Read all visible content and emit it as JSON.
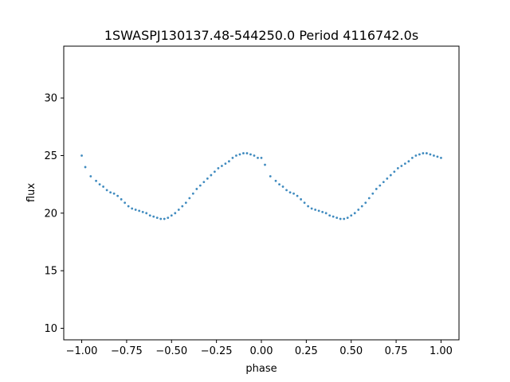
{
  "chart_data": {
    "type": "scatter",
    "title": "1SWASPJ130137.48-544250.0 Period 4116742.0s",
    "xlabel": "phase",
    "ylabel": "flux",
    "xlim": [
      -1.1,
      1.1
    ],
    "ylim": [
      9.0,
      34.5
    ],
    "xticks": [
      -1.0,
      -0.75,
      -0.5,
      -0.25,
      0.0,
      0.25,
      0.5,
      0.75,
      1.0
    ],
    "xtick_labels": [
      "−1.00",
      "−0.75",
      "−0.50",
      "−0.25",
      "0.00",
      "0.25",
      "0.50",
      "0.75",
      "1.00"
    ],
    "yticks": [
      10,
      15,
      20,
      25,
      30
    ],
    "ytick_labels": [
      "10",
      "15",
      "20",
      "25",
      "30"
    ],
    "grid": false,
    "marker_color": "#1f77b4",
    "series": [
      {
        "x": [
          -1.0,
          -0.98,
          -0.95,
          -0.92,
          -0.9,
          -0.88,
          -0.86,
          -0.84,
          -0.82,
          -0.8,
          -0.78,
          -0.76,
          -0.74,
          -0.72,
          -0.7,
          -0.68,
          -0.66,
          -0.64,
          -0.62,
          -0.6,
          -0.58,
          -0.56,
          -0.54,
          -0.52,
          -0.5,
          -0.48,
          -0.46,
          -0.44,
          -0.42,
          -0.4,
          -0.38,
          -0.36,
          -0.34,
          -0.32,
          -0.3,
          -0.28,
          -0.26,
          -0.24,
          -0.22,
          -0.2,
          -0.18,
          -0.16,
          -0.14,
          -0.12,
          -0.1,
          -0.08,
          -0.06,
          -0.04,
          -0.02,
          0.0,
          0.02,
          0.05,
          0.08,
          0.1,
          0.12,
          0.14,
          0.16,
          0.18,
          0.2,
          0.22,
          0.24,
          0.26,
          0.28,
          0.3,
          0.32,
          0.34,
          0.36,
          0.38,
          0.4,
          0.42,
          0.44,
          0.46,
          0.48,
          0.5,
          0.52,
          0.54,
          0.56,
          0.58,
          0.6,
          0.62,
          0.64,
          0.66,
          0.68,
          0.7,
          0.72,
          0.74,
          0.76,
          0.78,
          0.8,
          0.82,
          0.84,
          0.86,
          0.88,
          0.9,
          0.92,
          0.94,
          0.96,
          0.98,
          1.0
        ],
        "y": [
          25.0,
          24.0,
          23.2,
          22.8,
          22.5,
          22.3,
          22.0,
          21.8,
          21.7,
          21.5,
          21.2,
          20.9,
          20.6,
          20.4,
          20.3,
          20.2,
          20.1,
          20.0,
          19.8,
          19.7,
          19.6,
          19.5,
          19.5,
          19.6,
          19.8,
          20.0,
          20.3,
          20.6,
          20.9,
          21.3,
          21.7,
          22.1,
          22.4,
          22.7,
          23.0,
          23.3,
          23.6,
          23.9,
          24.1,
          24.3,
          24.5,
          24.8,
          25.0,
          25.1,
          25.2,
          25.2,
          25.1,
          25.0,
          24.8,
          24.8,
          24.2,
          23.2,
          22.8,
          22.5,
          22.3,
          22.0,
          21.8,
          21.7,
          21.5,
          21.2,
          20.9,
          20.6,
          20.4,
          20.3,
          20.2,
          20.1,
          20.0,
          19.8,
          19.7,
          19.6,
          19.5,
          19.5,
          19.6,
          19.8,
          20.0,
          20.3,
          20.6,
          20.9,
          21.3,
          21.7,
          22.1,
          22.4,
          22.7,
          23.0,
          23.3,
          23.6,
          23.9,
          24.1,
          24.3,
          24.5,
          24.8,
          25.0,
          25.1,
          25.2,
          25.2,
          25.1,
          25.0,
          24.9,
          24.8
        ]
      }
    ]
  }
}
